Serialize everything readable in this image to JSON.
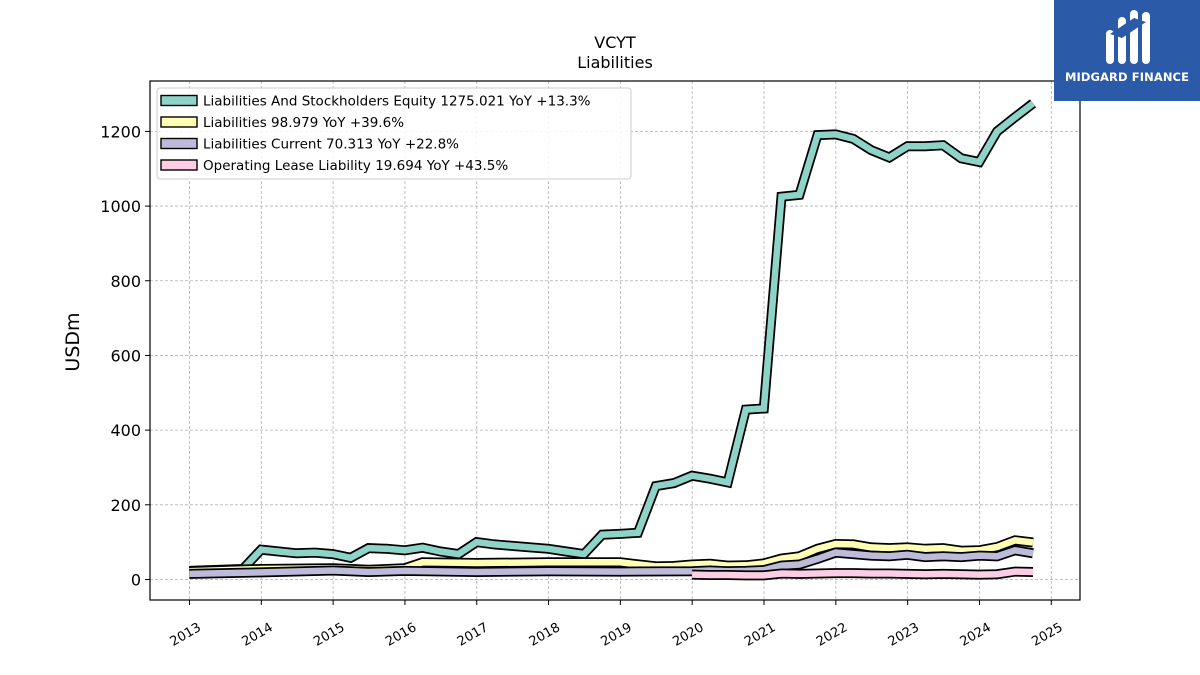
{
  "chart_data": {
    "type": "area",
    "title": "VCYT",
    "subtitle": "Liabilities",
    "ylabel": "USDm",
    "xlabel": "",
    "ylim": [
      -55,
      1335
    ],
    "xlim": [
      2012.45,
      2025.4
    ],
    "yticks": [
      0,
      200,
      400,
      600,
      800,
      1000,
      1200
    ],
    "xticks": [
      "2013",
      "2014",
      "2015",
      "2016",
      "2017",
      "2018",
      "2019",
      "2020",
      "2021",
      "2022",
      "2023",
      "2024",
      "2025"
    ],
    "grid": true,
    "legend_position": "top-left",
    "series": [
      {
        "name": "Liabilities And Stockholders Equity",
        "legend_label": "Liabilities And Stockholders Equity  1275.021 YoY +13.3%",
        "color": "#8dd3c7",
        "x": [
          "2012-12-31",
          "2013-09-30",
          "2013-12-31",
          "2014-03-31",
          "2014-06-30",
          "2014-09-30",
          "2014-12-31",
          "2015-03-31",
          "2015-06-30",
          "2015-09-30",
          "2015-12-31",
          "2016-03-31",
          "2016-06-30",
          "2016-09-30",
          "2016-12-31",
          "2017-03-31",
          "2017-06-30",
          "2017-09-30",
          "2017-12-31",
          "2018-03-31",
          "2018-06-30",
          "2018-09-30",
          "2018-12-31",
          "2019-03-31",
          "2019-06-30",
          "2019-09-30",
          "2019-12-31",
          "2020-03-31",
          "2020-06-30",
          "2020-09-30",
          "2020-12-31",
          "2021-03-31",
          "2021-06-30",
          "2021-09-30",
          "2021-12-31",
          "2022-03-31",
          "2022-06-30",
          "2022-09-30",
          "2022-12-31",
          "2023-03-31",
          "2023-06-30",
          "2023-09-30",
          "2023-12-31",
          "2024-03-31",
          "2024-06-30",
          "2024-09-30"
        ],
        "values": [
          23,
          28,
          80,
          75,
          70,
          72,
          68,
          58,
          84,
          82,
          78,
          85,
          75,
          68,
          100,
          94,
          90,
          86,
          82,
          75,
          68,
          120,
          122,
          125,
          250,
          258,
          278,
          270,
          260,
          455,
          458,
          1025,
          1030,
          1190,
          1192,
          1180,
          1150,
          1130,
          1160,
          1160,
          1163,
          1128,
          1118,
          1200,
          1238,
          1275
        ]
      },
      {
        "name": "Liabilities",
        "legend_label": "Liabilities  98.979 YoY +39.6%",
        "color": "#ffffb3",
        "x": [
          "2012-12-31",
          "2013-12-31",
          "2014-12-31",
          "2015-06-30",
          "2015-12-31",
          "2016-03-31",
          "2016-12-31",
          "2017-12-31",
          "2018-12-31",
          "2019-06-30",
          "2019-09-30",
          "2019-12-31",
          "2020-03-31",
          "2020-06-30",
          "2020-09-30",
          "2020-12-31",
          "2021-03-31",
          "2021-06-30",
          "2021-09-30",
          "2021-12-31",
          "2022-03-31",
          "2022-06-30",
          "2022-09-30",
          "2022-12-31",
          "2023-03-31",
          "2023-06-30",
          "2023-09-30",
          "2023-12-31",
          "2024-03-31",
          "2024-06-30",
          "2024-09-30"
        ],
        "values": [
          22,
          28,
          30,
          26,
          30,
          46,
          44,
          46,
          46,
          35,
          36,
          40,
          42,
          37,
          38,
          43,
          56,
          62,
          82,
          95,
          94,
          86,
          84,
          86,
          82,
          84,
          77,
          78,
          87,
          105,
          99
        ]
      },
      {
        "name": "Liabilities Current",
        "legend_label": "Liabilities Current  70.313 YoY +22.8%",
        "color": "#bebada",
        "x": [
          "2012-12-31",
          "2013-12-31",
          "2014-12-31",
          "2015-06-30",
          "2015-12-31",
          "2016-12-31",
          "2017-12-31",
          "2018-12-31",
          "2019-12-31",
          "2020-03-31",
          "2020-06-30",
          "2020-09-30",
          "2020-12-31",
          "2021-03-31",
          "2021-06-30",
          "2021-09-30",
          "2021-12-31",
          "2022-03-31",
          "2022-06-30",
          "2022-09-30",
          "2022-12-31",
          "2023-03-31",
          "2023-06-30",
          "2023-09-30",
          "2023-12-31",
          "2024-03-31",
          "2024-06-30",
          "2024-09-30"
        ],
        "values": [
          15,
          19,
          24,
          20,
          23,
          20,
          22,
          21,
          22,
          24,
          22,
          23,
          25,
          37,
          40,
          55,
          72,
          68,
          64,
          62,
          66,
          60,
          62,
          60,
          64,
          62,
          78,
          70
        ]
      },
      {
        "name": "Operating Lease Liability",
        "legend_label": "Operating Lease Liability  19.694 YoY +43.5%",
        "color": "#fccde5",
        "x": [
          "2019-12-31",
          "2020-03-31",
          "2020-06-30",
          "2020-09-30",
          "2020-12-31",
          "2021-03-31",
          "2021-06-30",
          "2021-09-30",
          "2021-12-31",
          "2022-03-31",
          "2022-06-30",
          "2022-09-30",
          "2022-12-31",
          "2023-03-31",
          "2023-06-30",
          "2023-09-30",
          "2023-12-31",
          "2024-03-31",
          "2024-06-30",
          "2024-09-30"
        ],
        "values": [
          13,
          12,
          12,
          11,
          11,
          16,
          15,
          16,
          17,
          17,
          16,
          16,
          15,
          14,
          15,
          14,
          13,
          14,
          21,
          20
        ]
      }
    ]
  },
  "branding": {
    "logo_text": "MIDGARD FINANCE",
    "logo_color": "#2a5aa8"
  }
}
